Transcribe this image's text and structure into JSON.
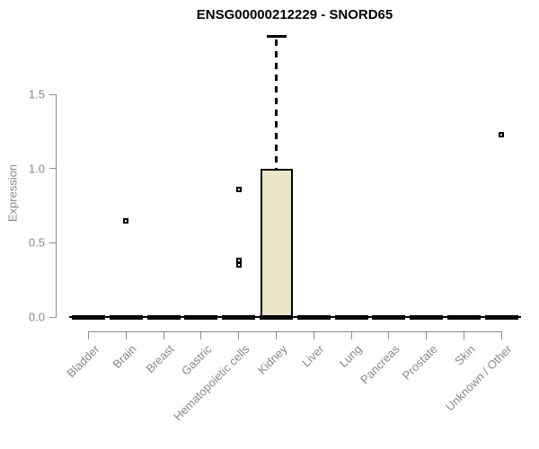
{
  "chart": {
    "title": "ENSG00000212229 - SNORD65",
    "ylabel": "Expression"
  },
  "chart_data": {
    "type": "boxplot",
    "title": "ENSG00000212229 - SNORD65",
    "xlabel": "",
    "ylabel": "Expression",
    "ylim": [
      0,
      1.95
    ],
    "yticks": [
      0.0,
      0.5,
      1.0,
      1.5
    ],
    "grid": false,
    "legend": null,
    "box_fill": "#EBE5C9",
    "box_border": "#000000",
    "axis_color": "#8C8C8C",
    "label_color": "#888888",
    "categories": [
      "Bladder",
      "Brain",
      "Breast",
      "Gastric",
      "Hematopoietic cells",
      "Kidney",
      "Liver",
      "Lung",
      "Pancreas",
      "Prostate",
      "Skin",
      "Unknown / Other"
    ],
    "series": [
      {
        "category": "Bladder",
        "min": 0,
        "q1": 0,
        "median": 0,
        "q3": 0,
        "max": 0,
        "outliers": []
      },
      {
        "category": "Brain",
        "min": 0,
        "q1": 0,
        "median": 0,
        "q3": 0,
        "max": 0,
        "outliers": [
          0.65
        ]
      },
      {
        "category": "Breast",
        "min": 0,
        "q1": 0,
        "median": 0,
        "q3": 0,
        "max": 0,
        "outliers": []
      },
      {
        "category": "Gastric",
        "min": 0,
        "q1": 0,
        "median": 0,
        "q3": 0,
        "max": 0,
        "outliers": []
      },
      {
        "category": "Hematopoietic cells",
        "min": 0,
        "q1": 0,
        "median": 0,
        "q3": 0,
        "max": 0,
        "outliers": [
          0.86,
          0.38,
          0.35
        ]
      },
      {
        "category": "Kidney",
        "min": 0,
        "q1": 0,
        "median": 0,
        "q3": 1.0,
        "max": 1.89,
        "outliers": []
      },
      {
        "category": "Liver",
        "min": 0,
        "q1": 0,
        "median": 0,
        "q3": 0,
        "max": 0,
        "outliers": []
      },
      {
        "category": "Lung",
        "min": 0,
        "q1": 0,
        "median": 0,
        "q3": 0,
        "max": 0,
        "outliers": []
      },
      {
        "category": "Pancreas",
        "min": 0,
        "q1": 0,
        "median": 0,
        "q3": 0,
        "max": 0,
        "outliers": []
      },
      {
        "category": "Prostate",
        "min": 0,
        "q1": 0,
        "median": 0,
        "q3": 0,
        "max": 0,
        "outliers": []
      },
      {
        "category": "Skin",
        "min": 0,
        "q1": 0,
        "median": 0,
        "q3": 0,
        "max": 0,
        "outliers": []
      },
      {
        "category": "Unknown / Other",
        "min": 0,
        "q1": 0,
        "median": 0,
        "q3": 0,
        "max": 0,
        "outliers": [
          1.23
        ]
      }
    ]
  }
}
